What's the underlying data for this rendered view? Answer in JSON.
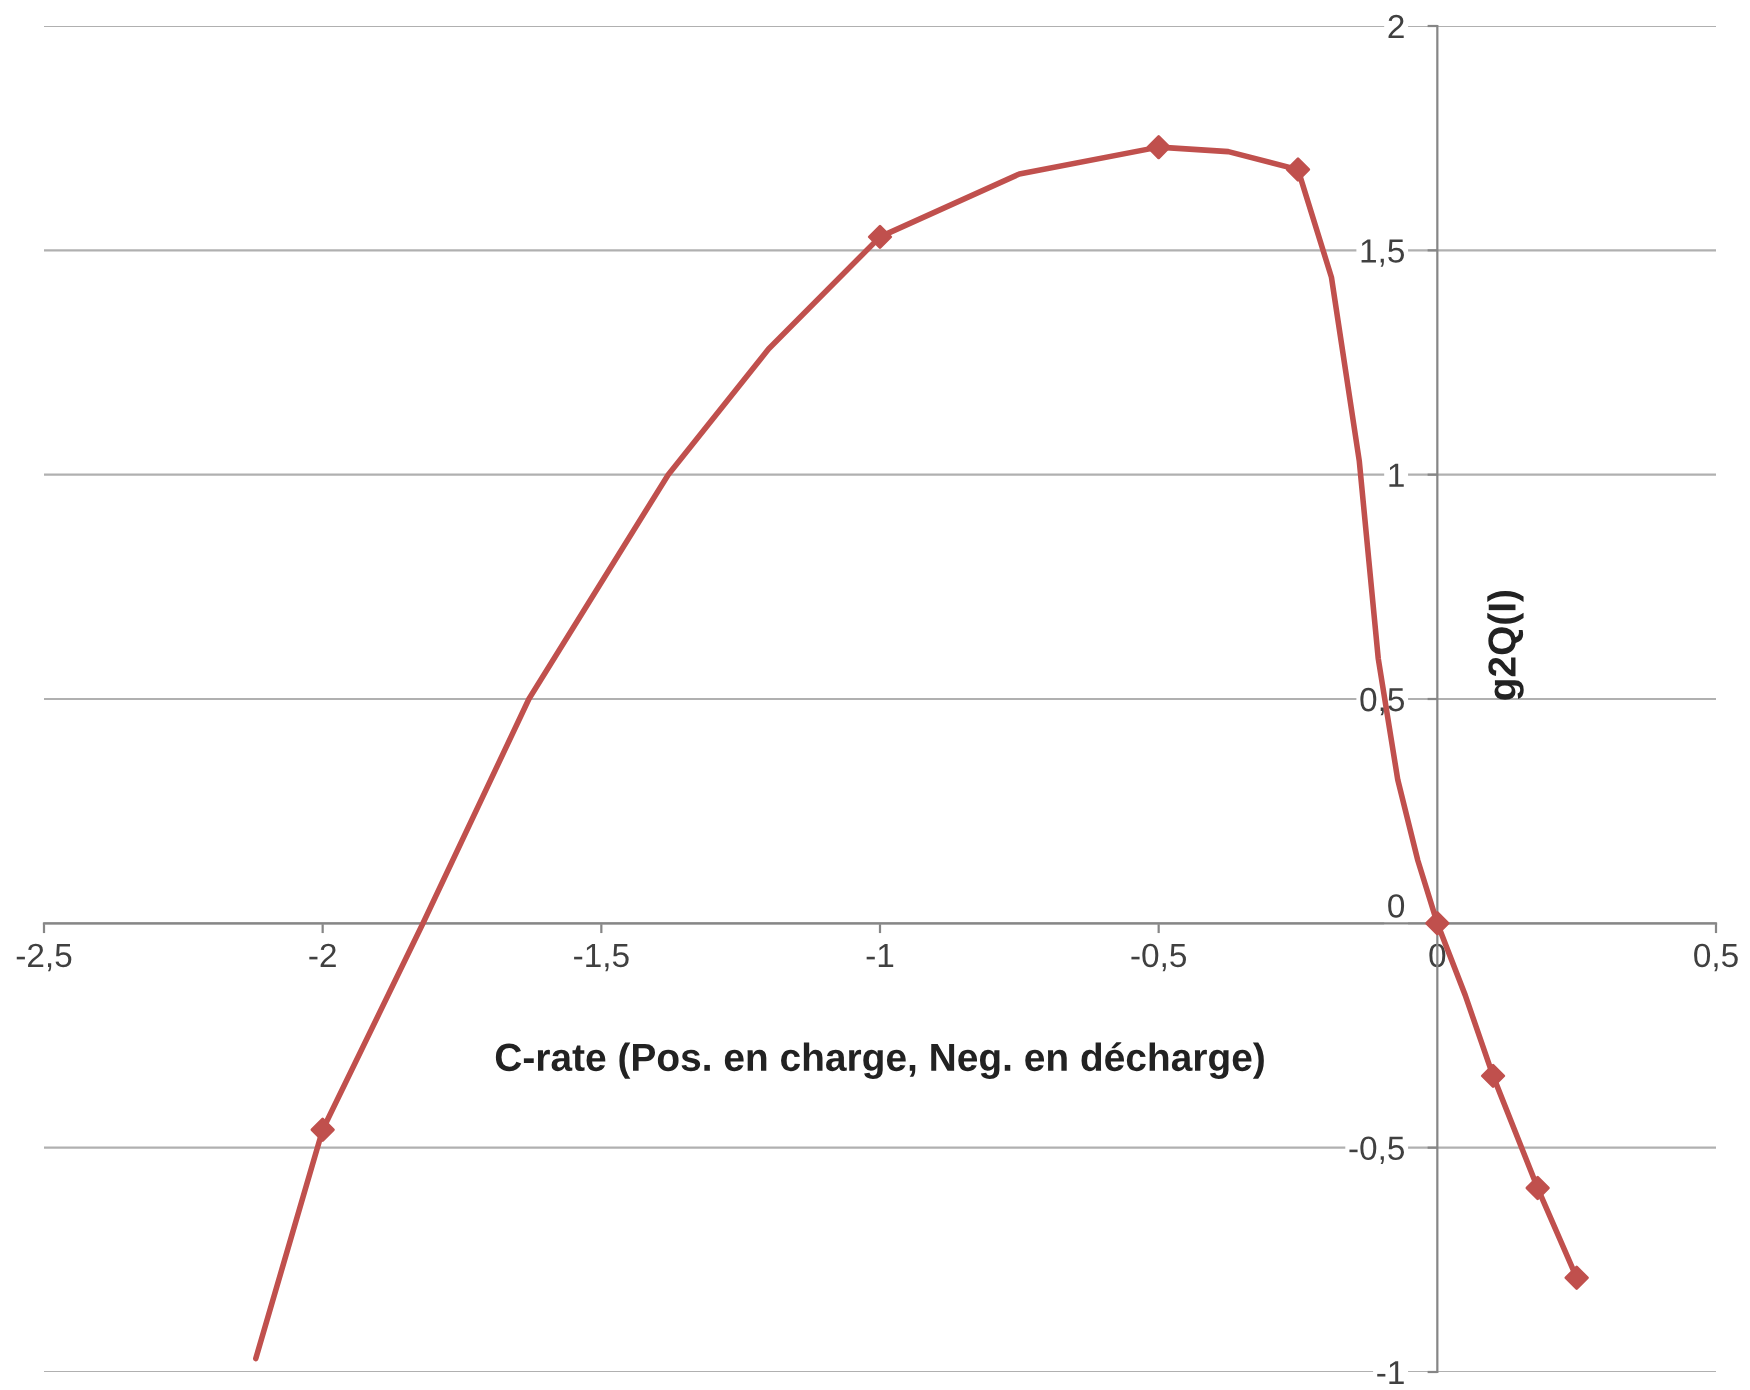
{
  "chart_data": {
    "type": "line",
    "xlabel": "C-rate (Pos. en charge, Neg. en décharge)",
    "ylabel": "g2Q(I)",
    "xlim": [
      -2.5,
      0.5
    ],
    "ylim": [
      -1,
      2
    ],
    "xticks": [
      {
        "value": -2.5,
        "label": "-2,5"
      },
      {
        "value": -2,
        "label": "-2"
      },
      {
        "value": -1.5,
        "label": "-1,5"
      },
      {
        "value": -1,
        "label": "-1"
      },
      {
        "value": -0.5,
        "label": "-0,5"
      },
      {
        "value": 0,
        "label": "0"
      },
      {
        "value": 0.5,
        "label": "0,5"
      }
    ],
    "yticks": [
      {
        "value": -1,
        "label": "-1"
      },
      {
        "value": -0.5,
        "label": "-0,5"
      },
      {
        "value": 0,
        "label": "0"
      },
      {
        "value": 0.5,
        "label": "0,5"
      },
      {
        "value": 1,
        "label": "1"
      },
      {
        "value": 1.5,
        "label": "1,5"
      },
      {
        "value": 2,
        "label": "2"
      }
    ],
    "grid": "y",
    "legend": false,
    "series": [
      {
        "color": "#c0504d",
        "marker": "none",
        "line_style": "solid",
        "x": [
          -2.12,
          -2.0,
          -1.82,
          -1.63,
          -1.38,
          -1.2,
          -1.0,
          -0.75,
          -0.5,
          -0.375,
          -0.25,
          -0.19,
          -0.14,
          -0.106,
          -0.071,
          -0.035,
          0.0,
          0.05,
          0.1,
          0.18,
          0.25
        ],
        "values": [
          -0.97,
          -0.46,
          0.0,
          0.5,
          1.0,
          1.28,
          1.53,
          1.67,
          1.73,
          1.72,
          1.68,
          1.44,
          1.03,
          0.59,
          0.32,
          0.14,
          0.0,
          -0.16,
          -0.34,
          -0.59,
          -0.79
        ]
      },
      {
        "type": "scatter",
        "color": "#c0504d",
        "marker": "diamond",
        "x": [
          -2.0,
          -1.0,
          -0.5,
          -0.25,
          0.0,
          0.1,
          0.18,
          0.25
        ],
        "values": [
          -0.46,
          1.53,
          1.73,
          1.68,
          0.0,
          -0.34,
          -0.59,
          -0.79
        ]
      }
    ]
  }
}
